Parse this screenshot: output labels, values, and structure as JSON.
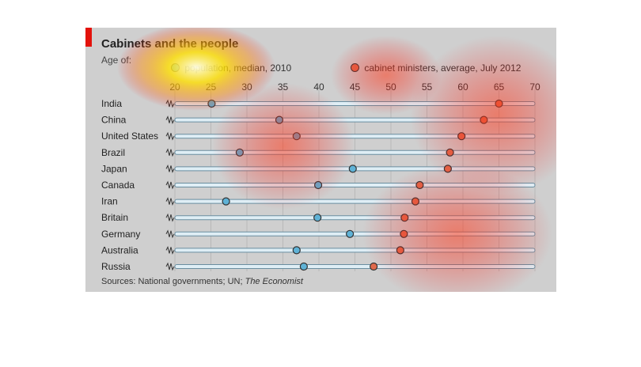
{
  "chart_data": {
    "type": "scatter",
    "title": "Cabinets and the people",
    "subtitle": "Age of:",
    "source_prefix": "Sources: National governments; UN; ",
    "source_italic": "The Economist",
    "xlim": [
      20,
      70
    ],
    "xticks": [
      20,
      25,
      30,
      35,
      40,
      45,
      50,
      55,
      60,
      65,
      70
    ],
    "legend_placement": "top",
    "categories": [
      "India",
      "China",
      "United States",
      "Brazil",
      "Japan",
      "Canada",
      "Iran",
      "Britain",
      "Germany",
      "Australia",
      "Russia"
    ],
    "series": [
      {
        "name": "population, median, 2010",
        "color": "#5fb2d6",
        "values": [
          25.1,
          34.5,
          36.9,
          29.0,
          44.7,
          39.9,
          27.1,
          39.8,
          44.3,
          36.9,
          37.9
        ]
      },
      {
        "name": "cabinet ministers, average, July 2012",
        "color": "#e06a4c",
        "values": [
          65.0,
          62.9,
          59.8,
          58.2,
          57.9,
          54.0,
          53.4,
          51.9,
          51.8,
          51.3,
          47.6
        ]
      }
    ]
  }
}
